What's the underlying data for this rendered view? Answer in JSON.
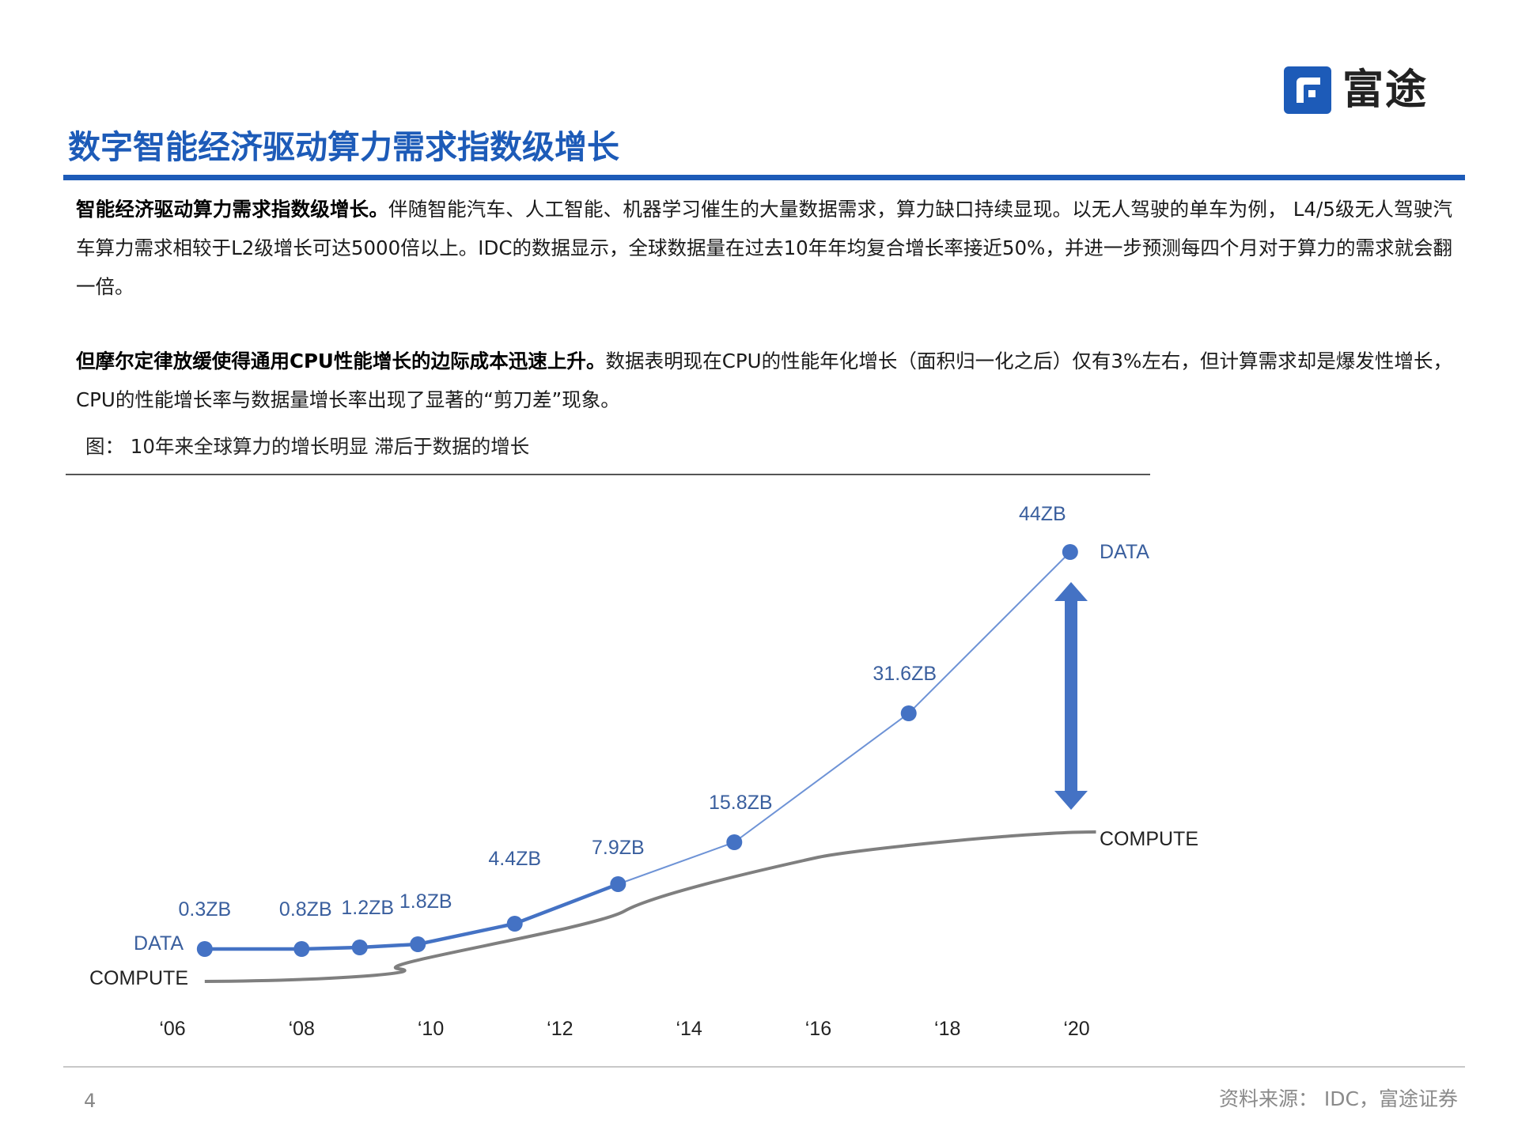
{
  "logo": {
    "text": "富途",
    "brand_color": "#1d5bb8"
  },
  "page_title": "数字智能经济驱动算力需求指数级增长",
  "para1": {
    "lead": "智能经济驱动算力需求指数级增长。",
    "body": "伴随智能汽车、人工智能、机器学习催生的大量数据需求，算力缺口持续显现。以无人驾驶的单车为例， L4/5级无人驾驶汽车算力需求相较于L2级增长可达5000倍以上。IDC的数据显示，全球数据量在过去10年年均复合增长率接近50%，并进一步预测每四个月对于算力的需求就会翻一倍。"
  },
  "para2": {
    "lead": "但摩尔定律放缓使得通用CPU性能增长的边际成本迅速上升。",
    "body": "数据表明现在CPU的性能年化增长（面积归一化之后）仅有3%左右，但计算需求却是爆发性增长，CPU的性能增长率与数据量增长率出现了显著的“剪刀差”现象。"
  },
  "figure_caption": "图： 10年来全球算力的增长明显 滞后于数据的增长",
  "chart_data": {
    "type": "line",
    "x_ticks": [
      "‘06",
      "‘08",
      "‘10",
      "‘12",
      "‘14",
      "‘16",
      "‘18",
      "‘20"
    ],
    "x_tick_values": [
      2006,
      2008,
      2010,
      2012,
      2014,
      2016,
      2018,
      2020
    ],
    "series": [
      {
        "name": "DATA",
        "color": "#4472c4",
        "points": [
          {
            "x": 2006.5,
            "label": "0.3ZB"
          },
          {
            "x": 2008,
            "label": "0.8ZB"
          },
          {
            "x": 2008.9,
            "label": "1.2ZB"
          },
          {
            "x": 2009.8,
            "label": "1.8ZB"
          },
          {
            "x": 2011.3,
            "label": "4.4ZB"
          },
          {
            "x": 2012.9,
            "label": "7.9ZB"
          },
          {
            "x": 2014.7,
            "label": "15.8ZB"
          },
          {
            "x": 2017.4,
            "label": "31.6ZB"
          },
          {
            "x": 2019.9,
            "label": "44ZB"
          }
        ]
      },
      {
        "name": "COMPUTE",
        "color": "#7f7f7f",
        "note": "smooth S-curve, no markers"
      }
    ],
    "annotation": "double-headed arrow between DATA and COMPUTE at '20 (gap)",
    "grid": false
  },
  "footer": {
    "page_number": "4",
    "source": "资料来源： IDC，富途证券"
  }
}
